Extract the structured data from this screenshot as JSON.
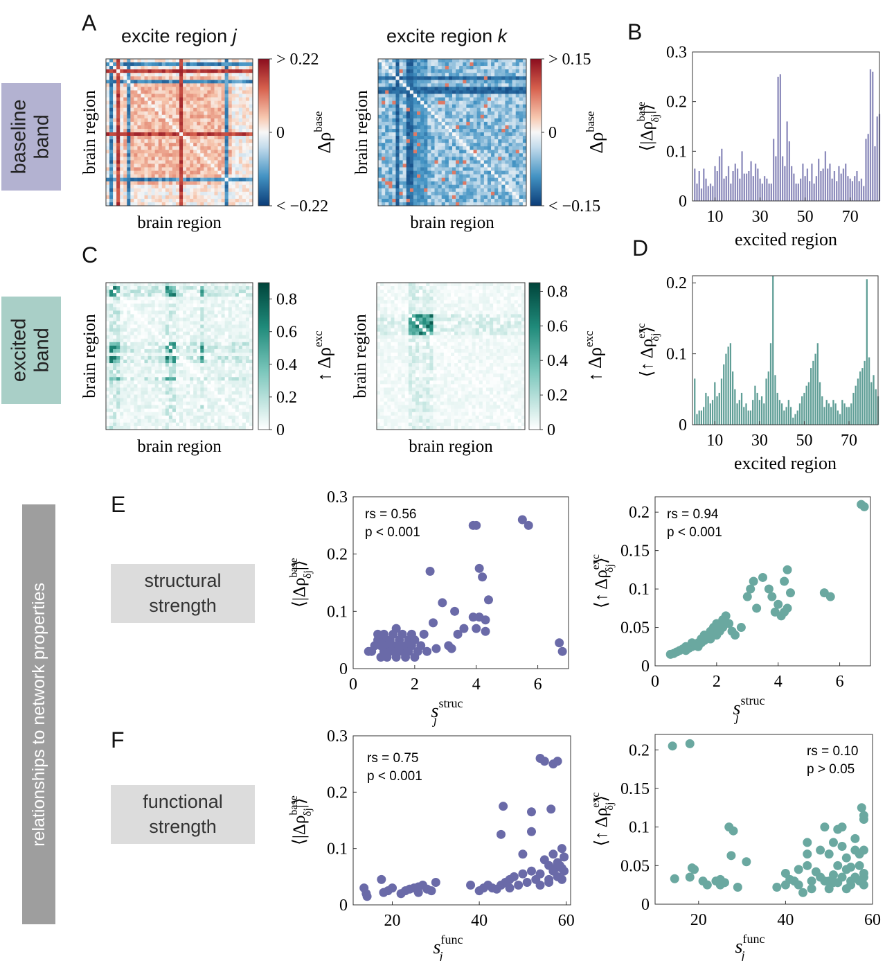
{
  "sidebar": {
    "baseline": "baseline band",
    "excited": "excited band",
    "network": "relationships to network properties",
    "baseline_color": "#b3b2d1",
    "excited_color": "#a9cfc7",
    "network_color": "#9e9e9e"
  },
  "panels": {
    "A": "A",
    "B": "B",
    "C": "C",
    "D": "D",
    "E": "E",
    "F": "F"
  },
  "heatmap_titles": {
    "left_prefix": "excite region ",
    "left_var": "j",
    "right_prefix": "excite region ",
    "right_var": "k"
  },
  "labels": {
    "brain_region": "brain region",
    "structural": "structural strength",
    "functional": "functional strength"
  },
  "chart_data": [
    {
      "id": "A_left",
      "type": "heatmap",
      "xlabel": "brain region",
      "ylabel": "brain region",
      "colorbar": {
        "label": "Δρ^base",
        "ticks": [
          "> 0.22",
          "0",
          "< −0.22"
        ],
        "range": [
          -0.22,
          0.22
        ],
        "colormap": "red-white-blue"
      }
    },
    {
      "id": "A_right",
      "type": "heatmap",
      "xlabel": "brain region",
      "ylabel": "brain region",
      "colorbar": {
        "label": "Δρ^base",
        "ticks": [
          "> 0.15",
          "0",
          "< −0.15"
        ],
        "range": [
          -0.15,
          0.15
        ],
        "colormap": "red-white-blue"
      }
    },
    {
      "id": "C_left",
      "type": "heatmap",
      "xlabel": "brain region",
      "ylabel": "brain region",
      "colorbar": {
        "label": "↑Δρ^exc",
        "ticks": [
          "0.8",
          "0.6",
          "0.4",
          "0.2",
          "0"
        ],
        "range": [
          0,
          0.9
        ],
        "colormap": "white-teal"
      }
    },
    {
      "id": "C_right",
      "type": "heatmap",
      "xlabel": "brain region",
      "ylabel": "brain region",
      "colorbar": {
        "label": "↑Δρ^exc",
        "ticks": [
          "0.8",
          "0.6",
          "0.4",
          "0.2",
          "0"
        ],
        "range": [
          0,
          0.85
        ],
        "colormap": "white-teal"
      }
    },
    {
      "id": "B",
      "type": "bar",
      "xlabel": "excited region",
      "ylabel": "⟨|Δρ^base_δj|⟩",
      "xticks": [
        10,
        30,
        50,
        70
      ],
      "yticks": [
        "0",
        "0.1",
        "0.2",
        "0.3"
      ],
      "ylim": [
        0,
        0.3
      ],
      "xlim": [
        0,
        83
      ],
      "color": "#8d8cbc",
      "values": [
        0.065,
        0.035,
        0.06,
        0.025,
        0.065,
        0.045,
        0.03,
        0.035,
        0.03,
        0.07,
        0.06,
        0.09,
        0.105,
        0.045,
        0.05,
        0.07,
        0.035,
        0.06,
        0.075,
        0.065,
        0.045,
        0.1,
        0.055,
        0.055,
        0.06,
        0.08,
        0.05,
        0.075,
        0.065,
        0.045,
        0.035,
        0.05,
        0.045,
        0.035,
        0.035,
        0.125,
        0.09,
        0.25,
        0.255,
        0.09,
        0.07,
        0.16,
        0.12,
        0.07,
        0.055,
        0.035,
        0.035,
        0.045,
        0.075,
        0.05,
        0.065,
        0.04,
        0.075,
        0.035,
        0.05,
        0.085,
        0.06,
        0.065,
        0.1,
        0.065,
        0.075,
        0.045,
        0.06,
        0.04,
        0.07,
        0.055,
        0.065,
        0.075,
        0.05,
        0.045,
        0.04,
        0.05,
        0.06,
        0.04,
        0.045,
        0.03,
        0.125,
        0.135,
        0.265,
        0.26,
        0.11,
        0.17,
        0.175
      ]
    },
    {
      "id": "D",
      "type": "bar",
      "xlabel": "excited region",
      "ylabel": "⟨↑Δρ^exc_δj⟩",
      "xticks": [
        10,
        30,
        50,
        70
      ],
      "yticks": [
        "0",
        "0.1",
        "0.2"
      ],
      "ylim": [
        0,
        0.21
      ],
      "xlim": [
        0,
        83
      ],
      "color": "#5f9e96",
      "values": [
        0.065,
        0.015,
        0.02,
        0.02,
        0.025,
        0.045,
        0.04,
        0.03,
        0.035,
        0.06,
        0.04,
        0.045,
        0.065,
        0.085,
        0.1,
        0.11,
        0.115,
        0.075,
        0.05,
        0.03,
        0.035,
        0.045,
        0.025,
        0.03,
        0.02,
        0.02,
        0.035,
        0.055,
        0.045,
        0.035,
        0.04,
        0.03,
        0.065,
        0.075,
        0.115,
        0.21,
        0.07,
        0.045,
        0.035,
        0.03,
        0.02,
        0.025,
        0.035,
        0.025,
        0.01,
        0.015,
        0.02,
        0.03,
        0.04,
        0.045,
        0.055,
        0.06,
        0.08,
        0.09,
        0.1,
        0.115,
        0.06,
        0.04,
        0.025,
        0.035,
        0.03,
        0.025,
        0.035,
        0.03,
        0.02,
        0.015,
        0.035,
        0.03,
        0.025,
        0.025,
        0.03,
        0.045,
        0.055,
        0.065,
        0.075,
        0.08,
        0.09,
        0.205,
        0.095,
        0.06,
        0.07,
        0.05,
        0.04
      ]
    },
    {
      "id": "E_left",
      "type": "scatter",
      "xlabel": "s_j^struc",
      "ylabel": "⟨|Δρ^base_δj|⟩",
      "xticks": [
        0,
        2,
        4,
        6
      ],
      "yticks": [
        "0",
        "0.1",
        "0.2",
        "0.3"
      ],
      "xlim": [
        0,
        7
      ],
      "ylim": [
        0,
        0.3
      ],
      "color": "#6a6aa8",
      "annotation": [
        "rs = 0.56",
        "p < 0.001"
      ],
      "points": [
        [
          0.5,
          0.03
        ],
        [
          0.6,
          0.03
        ],
        [
          0.7,
          0.04
        ],
        [
          0.8,
          0.05
        ],
        [
          0.8,
          0.06
        ],
        [
          0.9,
          0.02
        ],
        [
          0.9,
          0.04
        ],
        [
          1.0,
          0.05
        ],
        [
          1.0,
          0.03
        ],
        [
          1.0,
          0.06
        ],
        [
          1.1,
          0.04
        ],
        [
          1.1,
          0.02
        ],
        [
          1.2,
          0.03
        ],
        [
          1.2,
          0.05
        ],
        [
          1.3,
          0.04
        ],
        [
          1.3,
          0.06
        ],
        [
          1.4,
          0.02
        ],
        [
          1.4,
          0.03
        ],
        [
          1.4,
          0.07
        ],
        [
          1.5,
          0.05
        ],
        [
          1.5,
          0.04
        ],
        [
          1.6,
          0.03
        ],
        [
          1.6,
          0.06
        ],
        [
          1.7,
          0.02
        ],
        [
          1.7,
          0.04
        ],
        [
          1.8,
          0.05
        ],
        [
          1.8,
          0.03
        ],
        [
          1.9,
          0.06
        ],
        [
          1.9,
          0.04
        ],
        [
          2.0,
          0.02
        ],
        [
          2.0,
          0.05
        ],
        [
          2.1,
          0.03
        ],
        [
          2.2,
          0.04
        ],
        [
          2.3,
          0.06
        ],
        [
          2.4,
          0.03
        ],
        [
          2.5,
          0.17
        ],
        [
          2.6,
          0.08
        ],
        [
          2.7,
          0.035
        ],
        [
          2.9,
          0.115
        ],
        [
          3.1,
          0.04
        ],
        [
          3.2,
          0.035
        ],
        [
          3.3,
          0.1
        ],
        [
          3.4,
          0.06
        ],
        [
          3.6,
          0.07
        ],
        [
          3.9,
          0.25
        ],
        [
          4.0,
          0.25
        ],
        [
          3.9,
          0.09
        ],
        [
          4.0,
          0.07
        ],
        [
          4.1,
          0.09
        ],
        [
          4.1,
          0.175
        ],
        [
          4.2,
          0.16
        ],
        [
          4.3,
          0.085
        ],
        [
          4.4,
          0.12
        ],
        [
          4.3,
          0.065
        ],
        [
          5.5,
          0.26
        ],
        [
          5.7,
          0.25
        ],
        [
          6.7,
          0.045
        ],
        [
          6.8,
          0.03
        ]
      ]
    },
    {
      "id": "E_right",
      "type": "scatter",
      "xlabel": "s_j^struc",
      "ylabel": "⟨↑Δρ^exc_δj⟩",
      "xticks": [
        0,
        2,
        4,
        6
      ],
      "yticks": [
        "0",
        "0.05",
        "0.1",
        "0.15",
        "0.2"
      ],
      "xlim": [
        0,
        7
      ],
      "ylim": [
        0,
        0.22
      ],
      "color": "#6aa8a0",
      "annotation": [
        "rs = 0.94",
        "p < 0.001"
      ],
      "points": [
        [
          0.5,
          0.015
        ],
        [
          0.6,
          0.016
        ],
        [
          0.7,
          0.018
        ],
        [
          0.8,
          0.02
        ],
        [
          0.9,
          0.022
        ],
        [
          1.0,
          0.02
        ],
        [
          1.0,
          0.025
        ],
        [
          1.1,
          0.023
        ],
        [
          1.2,
          0.025
        ],
        [
          1.2,
          0.03
        ],
        [
          1.3,
          0.028
        ],
        [
          1.4,
          0.03
        ],
        [
          1.4,
          0.025
        ],
        [
          1.5,
          0.035
        ],
        [
          1.5,
          0.03
        ],
        [
          1.6,
          0.04
        ],
        [
          1.6,
          0.033
        ],
        [
          1.7,
          0.038
        ],
        [
          1.8,
          0.045
        ],
        [
          1.8,
          0.035
        ],
        [
          1.9,
          0.05
        ],
        [
          2.0,
          0.04
        ],
        [
          2.0,
          0.055
        ],
        [
          2.1,
          0.045
        ],
        [
          2.2,
          0.05
        ],
        [
          2.2,
          0.06
        ],
        [
          2.3,
          0.065
        ],
        [
          2.4,
          0.055
        ],
        [
          2.5,
          0.045
        ],
        [
          2.6,
          0.04
        ],
        [
          2.8,
          0.05
        ],
        [
          3.0,
          0.09
        ],
        [
          3.1,
          0.1
        ],
        [
          3.2,
          0.11
        ],
        [
          3.3,
          0.075
        ],
        [
          3.5,
          0.115
        ],
        [
          3.7,
          0.1
        ],
        [
          3.8,
          0.09
        ],
        [
          3.9,
          0.07
        ],
        [
          4.0,
          0.08
        ],
        [
          4.1,
          0.065
        ],
        [
          4.2,
          0.07
        ],
        [
          4.2,
          0.11
        ],
        [
          4.3,
          0.125
        ],
        [
          4.3,
          0.075
        ],
        [
          4.4,
          0.095
        ],
        [
          5.5,
          0.095
        ],
        [
          5.7,
          0.09
        ],
        [
          6.7,
          0.21
        ],
        [
          6.8,
          0.207
        ]
      ]
    },
    {
      "id": "F_left",
      "type": "scatter",
      "xlabel": "s_j^func",
      "ylabel": "⟨|Δρ^base_δj|⟩",
      "xticks": [
        20,
        40,
        60
      ],
      "yticks": [
        "0",
        "0.1",
        "0.2",
        "0.3"
      ],
      "xlim": [
        11,
        61
      ],
      "ylim": [
        0,
        0.3
      ],
      "color": "#6a6aa8",
      "annotation": [
        "rs = 0.75",
        "p < 0.001"
      ],
      "points": [
        [
          13.5,
          0.03
        ],
        [
          14,
          0.02
        ],
        [
          14.2,
          0.015
        ],
        [
          17.5,
          0.045
        ],
        [
          18,
          0.022
        ],
        [
          19,
          0.025
        ],
        [
          20,
          0.03
        ],
        [
          22,
          0.02
        ],
        [
          23,
          0.025
        ],
        [
          24,
          0.028
        ],
        [
          25,
          0.03
        ],
        [
          26,
          0.032
        ],
        [
          26,
          0.022
        ],
        [
          27,
          0.035
        ],
        [
          28,
          0.028
        ],
        [
          29,
          0.025
        ],
        [
          30,
          0.04
        ],
        [
          38,
          0.035
        ],
        [
          40,
          0.025
        ],
        [
          41,
          0.03
        ],
        [
          42,
          0.035
        ],
        [
          43,
          0.03
        ],
        [
          44,
          0.028
        ],
        [
          45,
          0.035
        ],
        [
          45,
          0.125
        ],
        [
          45.5,
          0.175
        ],
        [
          46,
          0.04
        ],
        [
          47,
          0.045
        ],
        [
          47,
          0.03
        ],
        [
          48,
          0.05
        ],
        [
          49,
          0.035
        ],
        [
          50,
          0.055
        ],
        [
          50,
          0.09
        ],
        [
          51,
          0.04
        ],
        [
          52,
          0.06
        ],
        [
          52,
          0.165
        ],
        [
          52,
          0.13
        ],
        [
          53,
          0.045
        ],
        [
          54,
          0.26
        ],
        [
          54,
          0.055
        ],
        [
          54,
          0.035
        ],
        [
          55,
          0.08
        ],
        [
          55,
          0.255
        ],
        [
          56,
          0.07
        ],
        [
          56,
          0.045
        ],
        [
          56,
          0.04
        ],
        [
          56.5,
          0.17
        ],
        [
          57,
          0.25
        ],
        [
          57,
          0.06
        ],
        [
          57,
          0.09
        ],
        [
          57.5,
          0.065
        ],
        [
          58,
          0.255
        ],
        [
          58,
          0.075
        ],
        [
          58,
          0.05
        ],
        [
          58.5,
          0.07
        ],
        [
          59,
          0.1
        ],
        [
          59,
          0.065
        ],
        [
          59,
          0.045
        ],
        [
          59.5,
          0.085
        ],
        [
          59.5,
          0.06
        ]
      ]
    },
    {
      "id": "F_right",
      "type": "scatter",
      "xlabel": "s_j^func",
      "ylabel": "⟨↑Δρ^exc_δj⟩",
      "xticks": [
        20,
        40,
        60
      ],
      "yticks": [
        "0",
        "0.05",
        "0.1",
        "0.15",
        "0.2"
      ],
      "xlim": [
        10,
        60
      ],
      "ylim": [
        0,
        0.22
      ],
      "color": "#6aa8a0",
      "annotation": [
        "rs = 0.10",
        "p > 0.05"
      ],
      "points": [
        [
          14,
          0.205
        ],
        [
          18,
          0.208
        ],
        [
          14.5,
          0.033
        ],
        [
          18,
          0.035
        ],
        [
          18.5,
          0.047
        ],
        [
          19,
          0.045
        ],
        [
          21,
          0.03
        ],
        [
          22,
          0.025
        ],
        [
          24,
          0.03
        ],
        [
          25,
          0.025
        ],
        [
          25,
          0.032
        ],
        [
          26,
          0.028
        ],
        [
          27,
          0.1
        ],
        [
          27.5,
          0.063
        ],
        [
          28,
          0.095
        ],
        [
          29,
          0.022
        ],
        [
          31,
          0.055
        ],
        [
          38,
          0.022
        ],
        [
          40,
          0.025
        ],
        [
          40,
          0.04
        ],
        [
          41,
          0.032
        ],
        [
          42,
          0.03
        ],
        [
          43,
          0.045
        ],
        [
          43,
          0.025
        ],
        [
          44,
          0.015
        ],
        [
          45,
          0.05
        ],
        [
          45,
          0.065
        ],
        [
          45,
          0.08
        ],
        [
          46,
          0.02
        ],
        [
          46,
          0.03
        ],
        [
          47,
          0.042
        ],
        [
          48,
          0.035
        ],
        [
          48,
          0.07
        ],
        [
          49,
          0.1
        ],
        [
          49,
          0.03
        ],
        [
          50,
          0.02
        ],
        [
          50,
          0.03
        ],
        [
          50,
          0.065
        ],
        [
          51,
          0.08
        ],
        [
          51,
          0.038
        ],
        [
          51,
          0.028
        ],
        [
          52,
          0.05
        ],
        [
          52,
          0.097
        ],
        [
          52,
          0.028
        ],
        [
          53,
          0.1
        ],
        [
          53,
          0.075
        ],
        [
          53,
          0.035
        ],
        [
          54,
          0.02
        ],
        [
          54,
          0.06
        ],
        [
          54,
          0.045
        ],
        [
          55,
          0.03
        ],
        [
          55,
          0.048
        ],
        [
          55,
          0.025
        ],
        [
          56,
          0.07
        ],
        [
          56,
          0.035
        ],
        [
          56,
          0.085
        ],
        [
          57,
          0.03
        ],
        [
          57,
          0.065
        ],
        [
          57,
          0.05
        ],
        [
          57.5,
          0.125
        ],
        [
          58,
          0.11
        ],
        [
          58,
          0.115
        ],
        [
          58,
          0.025
        ],
        [
          58,
          0.04
        ],
        [
          58,
          0.035
        ],
        [
          58,
          0.07
        ]
      ]
    }
  ]
}
